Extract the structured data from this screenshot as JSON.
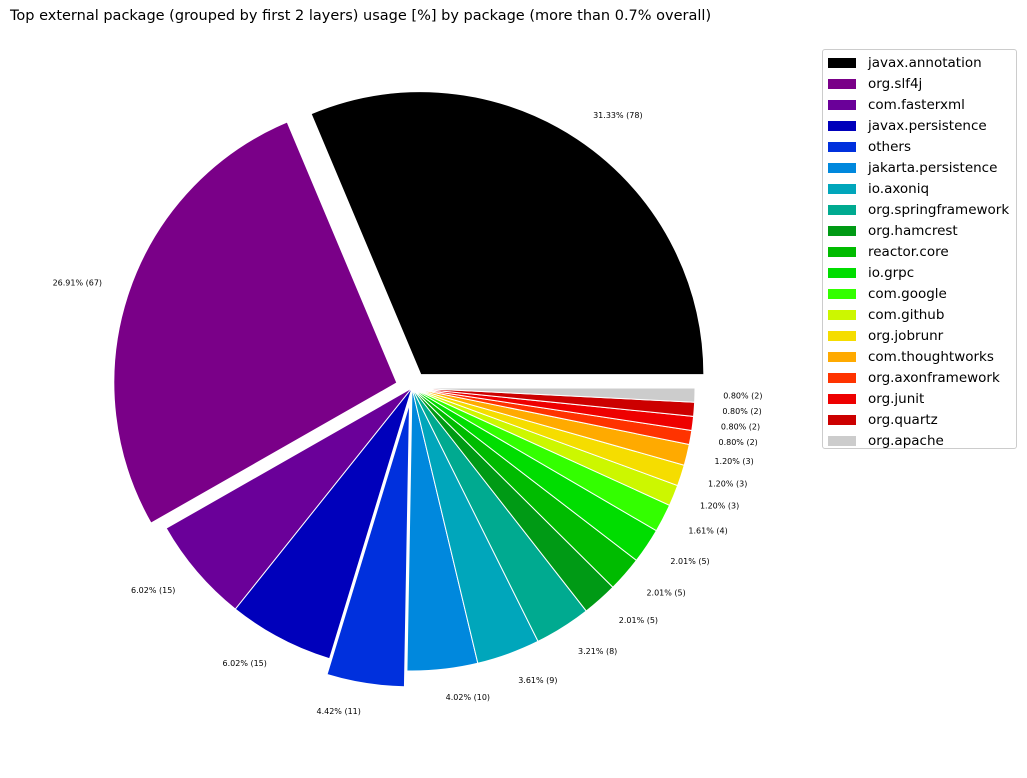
{
  "chart_data": {
    "type": "pie",
    "title": "Top external package (grouped by first 2 layers) usage [%] by package (more than 0.7% overall)",
    "slices": [
      {
        "name": "javax.annotation",
        "value": 31.33,
        "label": "31.33% (78)",
        "color": "#000000",
        "explode": true
      },
      {
        "name": "org.slf4j",
        "value": 26.91,
        "label": "26.91% (67)",
        "color": "#7a0088",
        "explode": true
      },
      {
        "name": "com.fasterxml",
        "value": 6.02,
        "label": "6.02% (15)",
        "color": "#6a0099",
        "explode": false
      },
      {
        "name": "javax.persistence",
        "value": 6.02,
        "label": "6.02% (15)",
        "color": "#0000bb",
        "explode": false
      },
      {
        "name": "others",
        "value": 4.42,
        "label": "4.42% (11)",
        "color": "#0030dd",
        "explode": true
      },
      {
        "name": "jakarta.persistence",
        "value": 4.02,
        "label": "4.02% (10)",
        "color": "#0088dd",
        "explode": false
      },
      {
        "name": "io.axoniq",
        "value": 3.61,
        "label": "3.61% (9)",
        "color": "#00a6bb",
        "explode": false
      },
      {
        "name": "org.springframework",
        "value": 3.21,
        "label": "3.21% (8)",
        "color": "#00aa90",
        "explode": false
      },
      {
        "name": "org.hamcrest",
        "value": 2.01,
        "label": "2.01% (5)",
        "color": "#009a15",
        "explode": false
      },
      {
        "name": "reactor.core",
        "value": 2.01,
        "label": "2.01% (5)",
        "color": "#00bb00",
        "explode": false
      },
      {
        "name": "io.grpc",
        "value": 2.01,
        "label": "2.01% (5)",
        "color": "#00dd00",
        "explode": false
      },
      {
        "name": "com.google",
        "value": 1.61,
        "label": "1.61% (4)",
        "color": "#33ff00",
        "explode": false
      },
      {
        "name": "com.github",
        "value": 1.2,
        "label": "1.20% (3)",
        "color": "#ccf700",
        "explode": false
      },
      {
        "name": "org.jobrunr",
        "value": 1.2,
        "label": "1.20% (3)",
        "color": "#f5dd00",
        "explode": false
      },
      {
        "name": "com.thoughtworks",
        "value": 1.2,
        "label": "1.20% (3)",
        "color": "#ffaa00",
        "explode": false
      },
      {
        "name": "org.axonframework",
        "value": 0.8,
        "label": "0.80% (2)",
        "color": "#ff3300",
        "explode": false
      },
      {
        "name": "org.junit",
        "value": 0.8,
        "label": "0.80% (2)",
        "color": "#ee0000",
        "explode": false
      },
      {
        "name": "org.quartz",
        "value": 0.8,
        "label": "0.80% (2)",
        "color": "#cc0000",
        "explode": false
      },
      {
        "name": "org.apache",
        "value": 0.8,
        "label": "0.80% (2)",
        "color": "#cccccc",
        "explode": false
      }
    ],
    "start_angle_deg": 0,
    "direction": "counterclockwise",
    "legend_position": "upper-right"
  }
}
